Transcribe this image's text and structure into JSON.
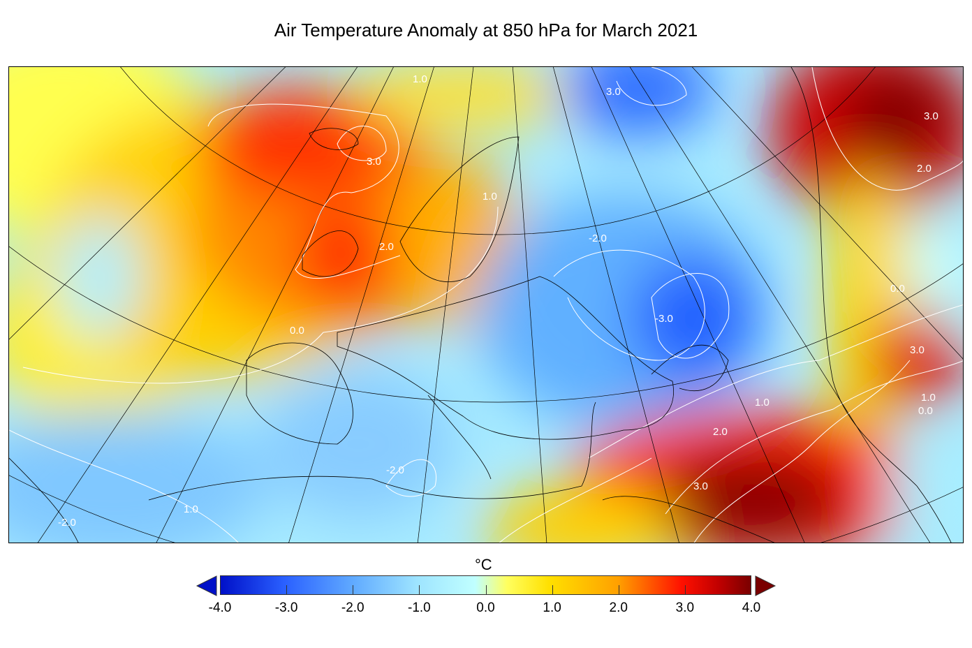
{
  "title": "Air Temperature Anomaly at 850 hPa for March 2021",
  "colorbar": {
    "unit": "°C",
    "min": -4.0,
    "max": 4.0,
    "extend": "both",
    "colors": {
      "low_arrow": "#0010c8",
      "high_arrow": "#7a0000"
    },
    "ticks": [
      "-4.0",
      "-3.0",
      "-2.0",
      "-1.0",
      "0.0",
      "1.0",
      "2.0",
      "3.0",
      "4.0"
    ]
  },
  "map": {
    "projection": "conic, Europe / North Atlantic / Middle East",
    "contour_labels": [
      "1.0",
      "3.0",
      "3.0",
      "3.0",
      "1.0",
      "2.0",
      "2.0",
      "-2.0",
      "0.0",
      "0.0",
      "-3.0",
      "3.0",
      "1.0",
      "1.0",
      "0.0",
      "2.0",
      "3.0",
      "-2.0",
      "1.0",
      "-2.0"
    ]
  }
}
